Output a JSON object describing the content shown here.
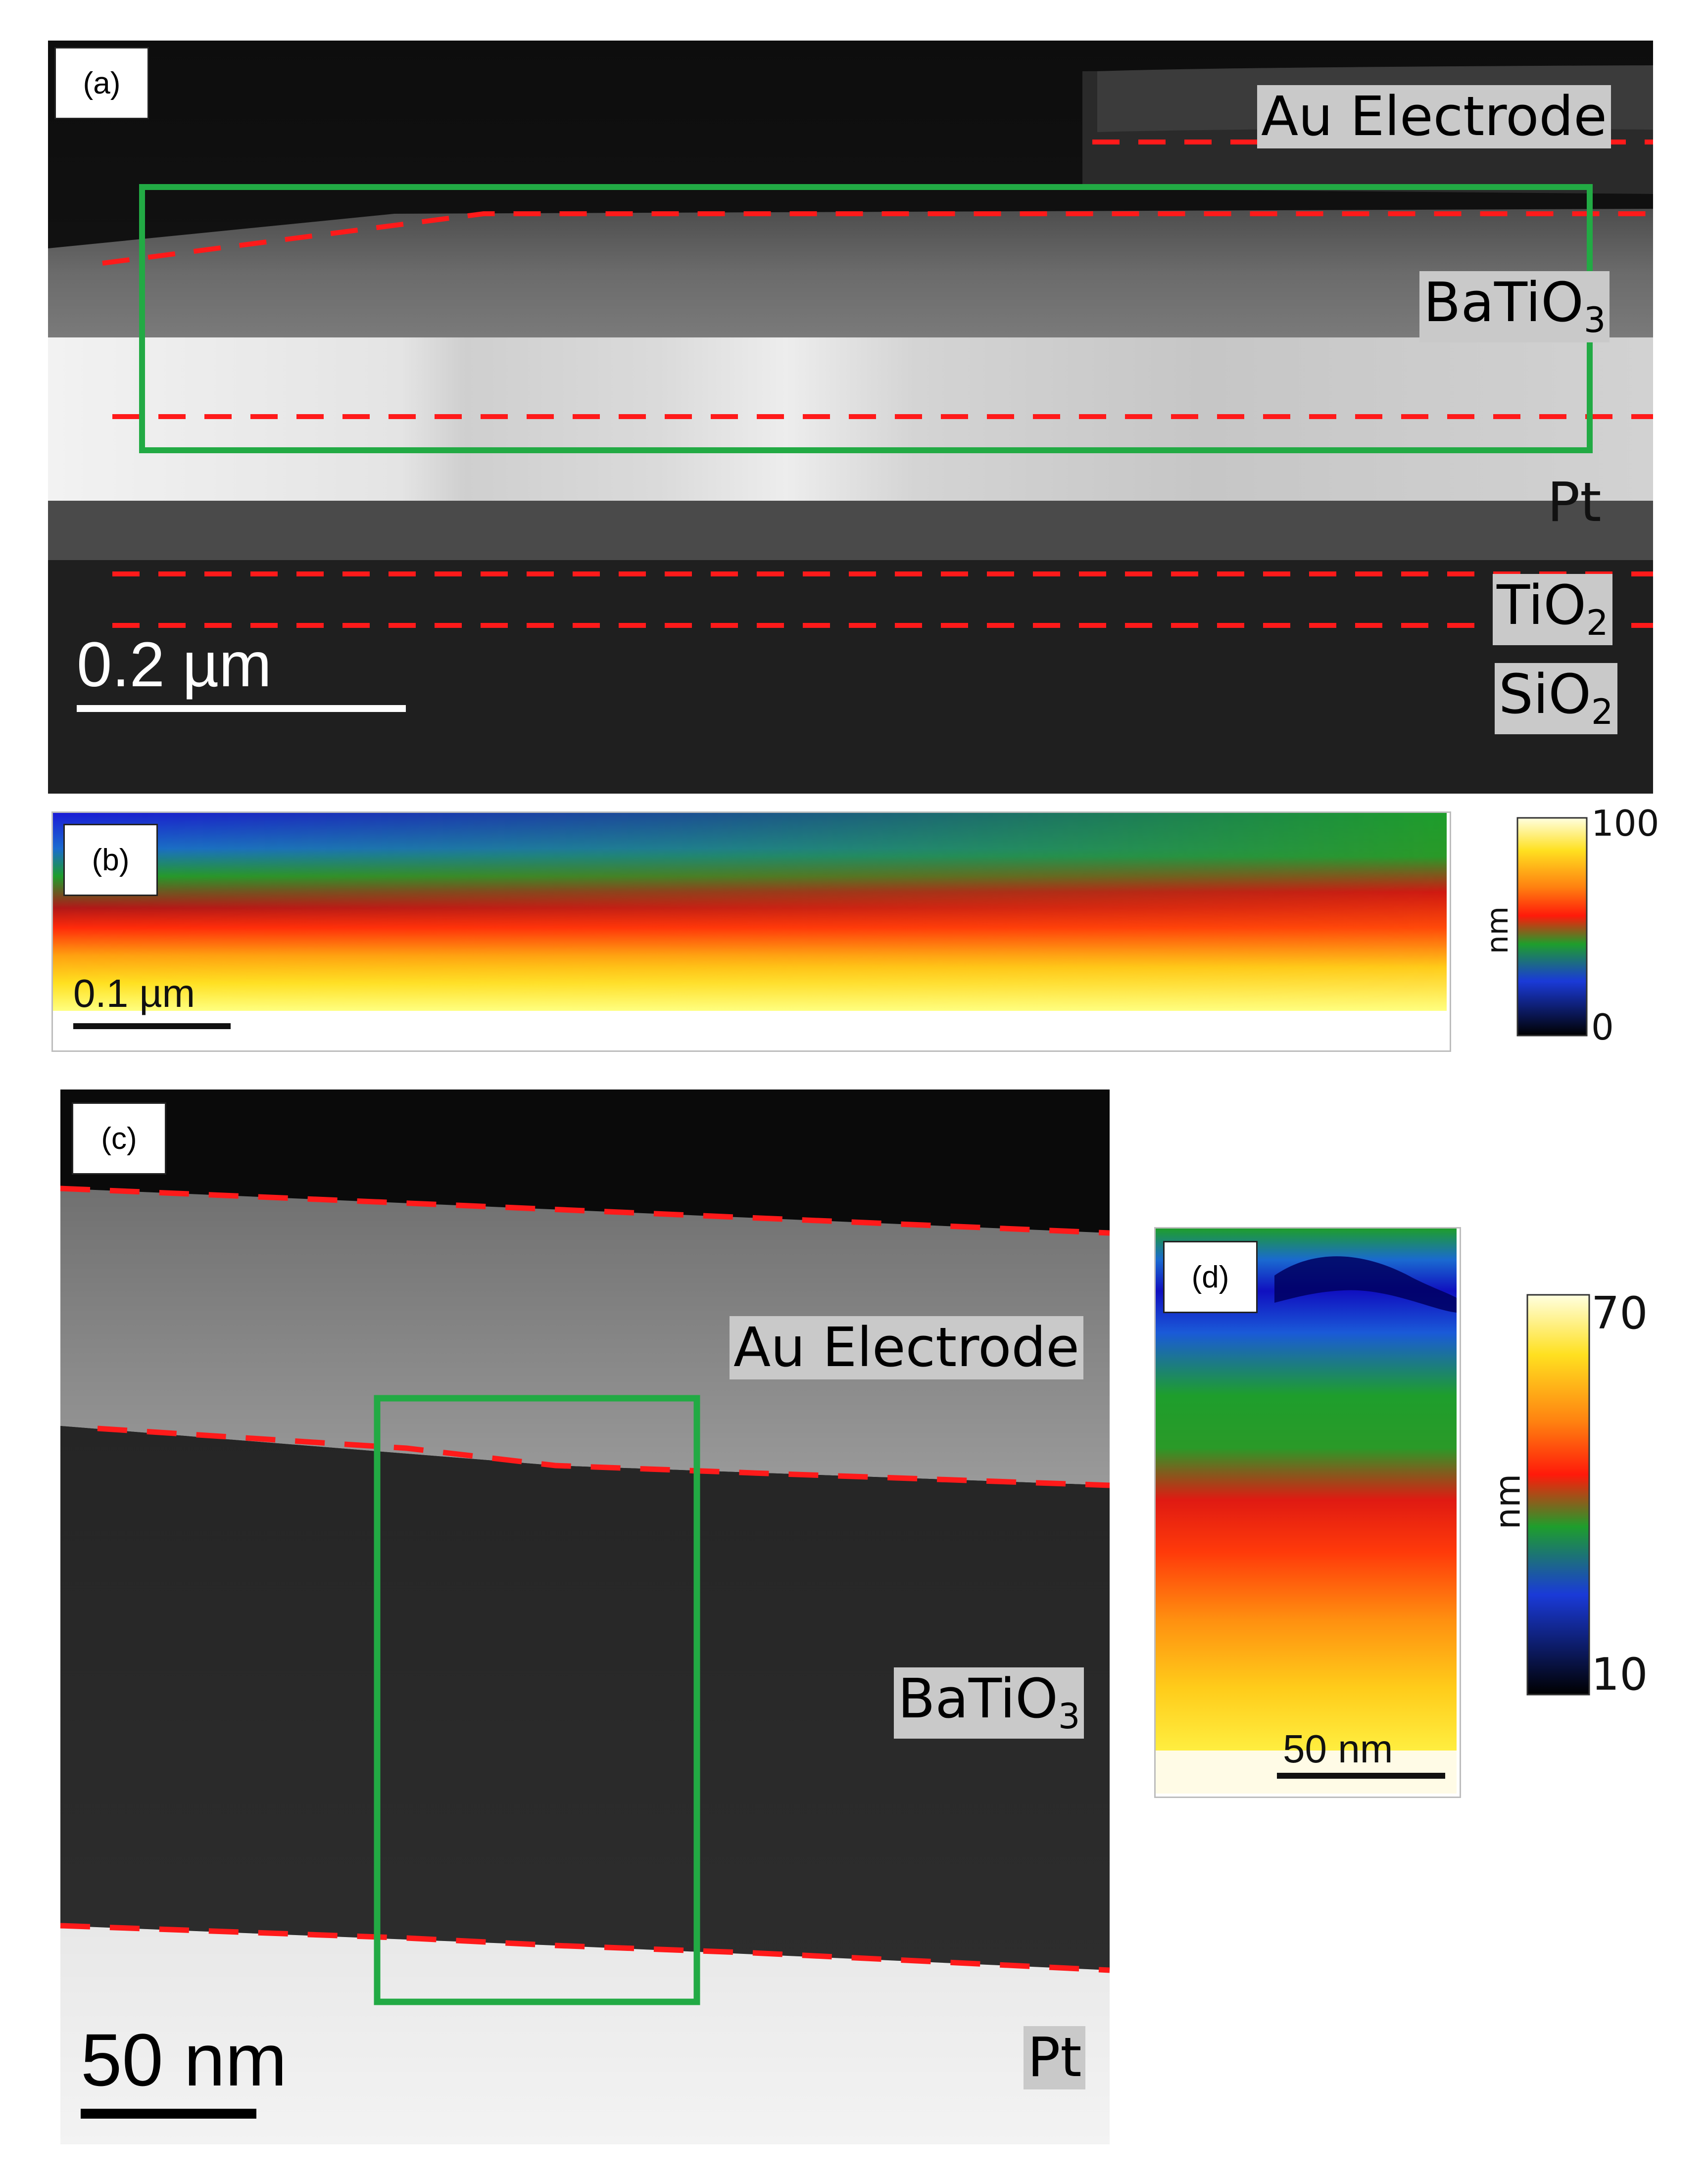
{
  "panel_a": {
    "tag": "(a)",
    "labels": {
      "au": "Au Electrode",
      "batio3_base": "BaTiO",
      "batio3_sub": "3",
      "pt": "Pt",
      "tio2_base": "TiO",
      "tio2_sub": "2",
      "sio2_base": "SiO",
      "sio2_sub": "2"
    },
    "scale_text": "0.2 µm"
  },
  "panel_b": {
    "tag": "(b)",
    "scale_text": "0.1 µm",
    "colorbar": {
      "max": "100",
      "min": "0",
      "unit": "nm"
    }
  },
  "panel_c": {
    "tag": "(c)",
    "labels": {
      "au": "Au Electrode",
      "batio3_base": "BaTiO",
      "batio3_sub": "3",
      "pt": "Pt"
    },
    "scale_text": "50 nm"
  },
  "panel_d": {
    "tag": "(d)",
    "scale_text": "50 nm",
    "colorbar": {
      "max": "70",
      "min": "10",
      "unit": "nm"
    }
  },
  "colors": {
    "boundary_dash": "#ff1a1a",
    "roi_box": "#22aa44"
  }
}
